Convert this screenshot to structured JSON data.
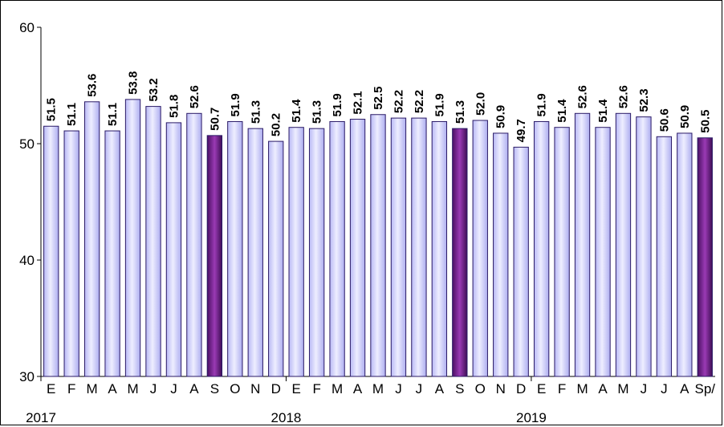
{
  "chart_data": {
    "type": "bar",
    "categories": [
      "E",
      "F",
      "M",
      "A",
      "M",
      "J",
      "J",
      "A",
      "S",
      "O",
      "N",
      "D",
      "E",
      "F",
      "M",
      "A",
      "M",
      "J",
      "J",
      "A",
      "S",
      "O",
      "N",
      "D",
      "E",
      "F",
      "M",
      "A",
      "M",
      "J",
      "J",
      "A",
      "Sp/"
    ],
    "values": [
      51.5,
      51.1,
      53.6,
      51.1,
      53.8,
      53.2,
      51.8,
      52.6,
      50.7,
      51.9,
      51.3,
      50.2,
      51.4,
      51.3,
      51.9,
      52.1,
      52.5,
      52.2,
      52.2,
      51.9,
      51.3,
      52.0,
      50.9,
      49.7,
      51.9,
      51.4,
      52.6,
      51.4,
      52.6,
      52.3,
      50.6,
      50.9,
      50.5
    ],
    "data_labels": [
      "51.5",
      "51.1",
      "53.6",
      "51.1",
      "53.8",
      "53.2",
      "51.8",
      "52.6",
      "50.7",
      "51.9",
      "51.3",
      "50.2",
      "51.4",
      "51.3",
      "51.9",
      "52.1",
      "52.5",
      "52.2",
      "52.2",
      "51.9",
      "51.3",
      "52.0",
      "50.9",
      "49.7",
      "51.9",
      "51.4",
      "52.6",
      "51.4",
      "52.6",
      "52.3",
      "50.6",
      "50.9",
      "50.5"
    ],
    "highlighted_indices": [
      8,
      20,
      32
    ],
    "year_labels": [
      {
        "text": "2017",
        "start_index": 0
      },
      {
        "text": "2018",
        "start_index": 12
      },
      {
        "text": "2019",
        "start_index": 24
      }
    ],
    "ylim": [
      30,
      60
    ],
    "yticks": [
      "30",
      "40",
      "50",
      "60"
    ],
    "grid": false,
    "legend": "none",
    "title": "",
    "xlabel": "",
    "ylabel": "",
    "colors": {
      "bar_light": "#cdcdfb",
      "bar_edge": "#2a1a66",
      "bar_highlight": "#7a2a8e",
      "bar_highlight_dark": "#3e0e55"
    }
  }
}
